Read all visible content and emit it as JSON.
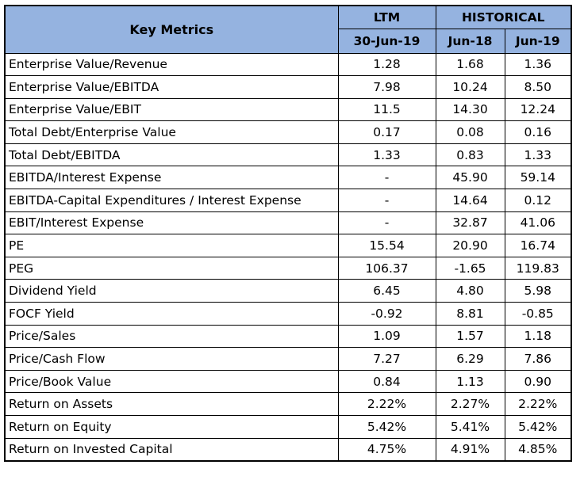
{
  "table": {
    "header": {
      "key_metrics": "Key Metrics",
      "ltm": "LTM",
      "historical": "HISTORICAL",
      "col_ltm_date": "30-Jun-19",
      "col_hist_1": "Jun-18",
      "col_hist_2": "Jun-19"
    },
    "rows": [
      {
        "label": "Enterprise Value/Revenue",
        "ltm": "1.28",
        "jun18": "1.68",
        "jun19": "1.36"
      },
      {
        "label": "Enterprise Value/EBITDA",
        "ltm": "7.98",
        "jun18": "10.24",
        "jun19": "8.50"
      },
      {
        "label": "Enterprise Value/EBIT",
        "ltm": "11.5",
        "jun18": "14.30",
        "jun19": "12.24"
      },
      {
        "label": "Total Debt/Enterprise Value",
        "ltm": "0.17",
        "jun18": "0.08",
        "jun19": "0.16"
      },
      {
        "label": "Total Debt/EBITDA",
        "ltm": "1.33",
        "jun18": "0.83",
        "jun19": "1.33"
      },
      {
        "label": "EBITDA/Interest Expense",
        "ltm": "-",
        "jun18": "45.90",
        "jun19": "59.14"
      },
      {
        "label": "EBITDA-Capital Expenditures / Interest Expense",
        "ltm": "-",
        "jun18": "14.64",
        "jun19": "0.12"
      },
      {
        "label": "EBIT/Interest Expense",
        "ltm": "-",
        "jun18": "32.87",
        "jun19": "41.06"
      },
      {
        "label": "PE",
        "ltm": "15.54",
        "jun18": "20.90",
        "jun19": "16.74"
      },
      {
        "label": "PEG",
        "ltm": "106.37",
        "jun18": "-1.65",
        "jun19": "119.83"
      },
      {
        "label": "Dividend Yield",
        "ltm": "6.45",
        "jun18": "4.80",
        "jun19": "5.98"
      },
      {
        "label": "FOCF Yield",
        "ltm": "-0.92",
        "jun18": "8.81",
        "jun19": "-0.85"
      },
      {
        "label": "Price/Sales",
        "ltm": "1.09",
        "jun18": "1.57",
        "jun19": "1.18"
      },
      {
        "label": "Price/Cash Flow",
        "ltm": "7.27",
        "jun18": "6.29",
        "jun19": "7.86"
      },
      {
        "label": "Price/Book Value",
        "ltm": "0.84",
        "jun18": "1.13",
        "jun19": "0.90"
      },
      {
        "label": "Return on Assets",
        "ltm": "2.22%",
        "jun18": "2.27%",
        "jun19": "2.22%"
      },
      {
        "label": "Return on Equity",
        "ltm": "5.42%",
        "jun18": "5.41%",
        "jun19": "5.42%"
      },
      {
        "label": "Return on Invested Capital",
        "ltm": "4.75%",
        "jun18": "4.91%",
        "jun19": "4.85%"
      }
    ]
  },
  "colors": {
    "header_fill": "#95b3e0",
    "border": "#000000",
    "background": "#ffffff"
  }
}
